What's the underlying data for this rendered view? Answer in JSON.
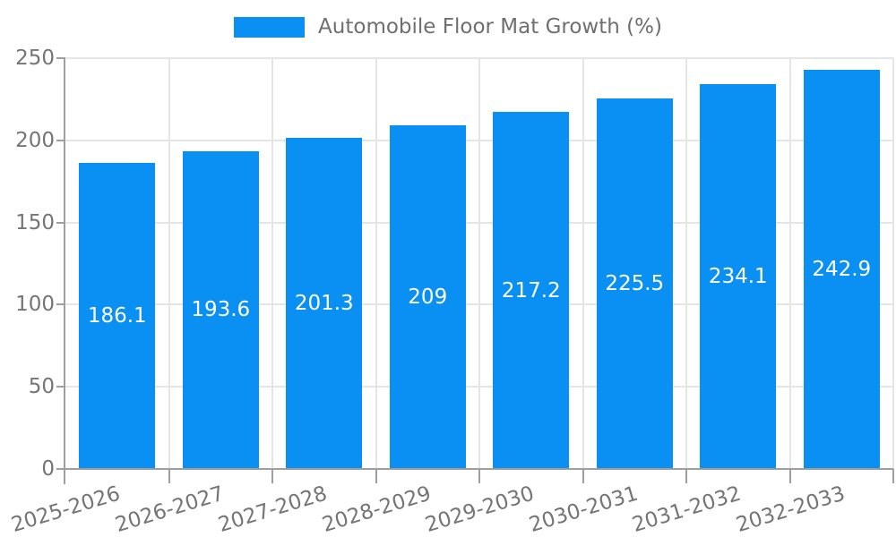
{
  "chart_data": {
    "type": "bar",
    "title": "Automobile Floor Mat Growth (%)",
    "series_name": "Automobile Floor Mat Growth (%)",
    "categories": [
      "2025-2026",
      "2026-2027",
      "2027-2028",
      "2028-2029",
      "2029-2030",
      "2030-2031",
      "2031-2032",
      "2032-2033"
    ],
    "values": [
      186.1,
      193.6,
      201.3,
      209,
      217.2,
      225.5,
      234.1,
      242.9
    ],
    "xlabel": "",
    "ylabel": "",
    "ylim": [
      0,
      250
    ],
    "yticks": [
      0,
      50,
      100,
      150,
      200,
      250
    ],
    "grid": true,
    "legend_position": "top-center",
    "bar_color": "#0a8ff2",
    "value_label_color": "#ffffff",
    "axis_text_color": "#757575",
    "legend_text_color": "#6f6f6f",
    "gridline_color": "#e5e5e5",
    "axis_line_color": "#9e9e9e",
    "background_color": "#ffffff"
  }
}
